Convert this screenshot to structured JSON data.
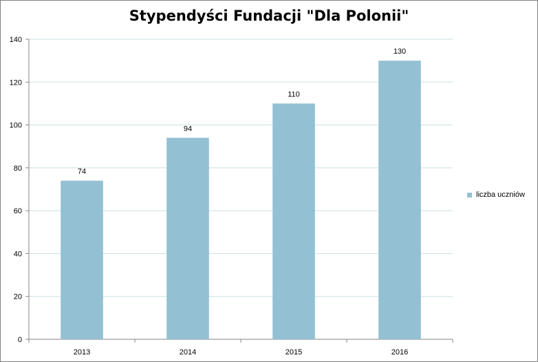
{
  "chart_data": {
    "type": "bar",
    "title": "Stypendyści Fundacji \"Dla Polonii\"",
    "categories": [
      "2013",
      "2014",
      "2015",
      "2016"
    ],
    "series": [
      {
        "name": "liczba uczniów",
        "values": [
          74,
          94,
          110,
          130
        ]
      }
    ],
    "ylim": [
      0,
      140
    ],
    "yticks": [
      0,
      20,
      40,
      60,
      80,
      100,
      120,
      140
    ],
    "grid": true,
    "legend_position": "right",
    "bar_color": "#93c1d3",
    "grid_color": "#c8dfe3",
    "axis_color": "#868686"
  }
}
